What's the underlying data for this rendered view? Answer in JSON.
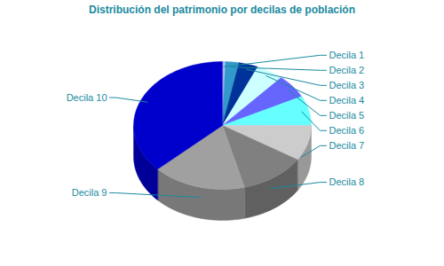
{
  "chart_data": {
    "type": "pie",
    "title": "Distribución del patrimonio por decilas de población",
    "categories": [
      "Decila 1",
      "Decila 2",
      "Decila 3",
      "Decila 4",
      "Decila 5",
      "Decila 6",
      "Decila 7",
      "Decila 8",
      "Decila 9",
      "Decila 10"
    ],
    "values": [
      0.5,
      2.5,
      3.5,
      5,
      6,
      7.5,
      9,
      12,
      17,
      37
    ],
    "colors": [
      "#ccccff",
      "#3399cc",
      "#003399",
      "#ccffff",
      "#6666ff",
      "#66ffff",
      "#cccccc",
      "#808080",
      "#a0a0a0",
      "#0000cc"
    ]
  }
}
